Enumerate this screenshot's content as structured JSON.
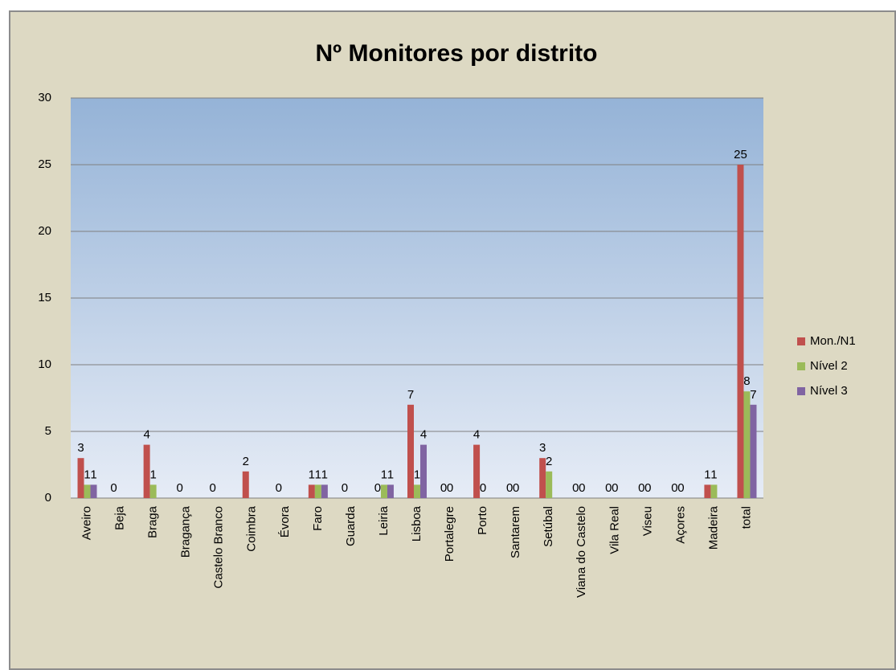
{
  "chart_data": {
    "type": "bar",
    "title": "Nº Monitores por distrito",
    "categories": [
      "Aveiro",
      "Beja",
      "Braga",
      "Bragança",
      "Castelo Branco",
      "Coimbra",
      "Évora",
      "Faro",
      "Guarda",
      "Leiria",
      "Lisboa",
      "Portalegre",
      "Porto",
      "Santarem",
      "Setúbal",
      "Viana do Castelo",
      "Vila Real",
      "Viseu",
      "Açores",
      "Madeira",
      "total"
    ],
    "series": [
      {
        "name": "Mon./N1",
        "color": "#c0504d",
        "values": [
          3,
          0,
          4,
          0,
          0,
          2,
          0,
          1,
          0,
          0,
          7,
          0,
          4,
          0,
          3,
          0,
          0,
          0,
          0,
          1,
          25
        ]
      },
      {
        "name": "Nível 2",
        "color": "#9bbb59",
        "values": [
          1,
          null,
          1,
          null,
          null,
          null,
          null,
          1,
          null,
          1,
          1,
          0,
          0,
          0,
          2,
          0,
          0,
          0,
          0,
          1,
          8
        ]
      },
      {
        "name": "Nível 3",
        "color": "#8064a2",
        "values": [
          1,
          null,
          null,
          null,
          null,
          null,
          null,
          1,
          null,
          1,
          4,
          null,
          null,
          null,
          null,
          null,
          null,
          null,
          null,
          null,
          7
        ]
      }
    ],
    "ylim": [
      0,
      30
    ],
    "yticks": [
      0,
      5,
      10,
      15,
      20,
      25,
      30
    ],
    "grid": true,
    "legend": "right"
  }
}
